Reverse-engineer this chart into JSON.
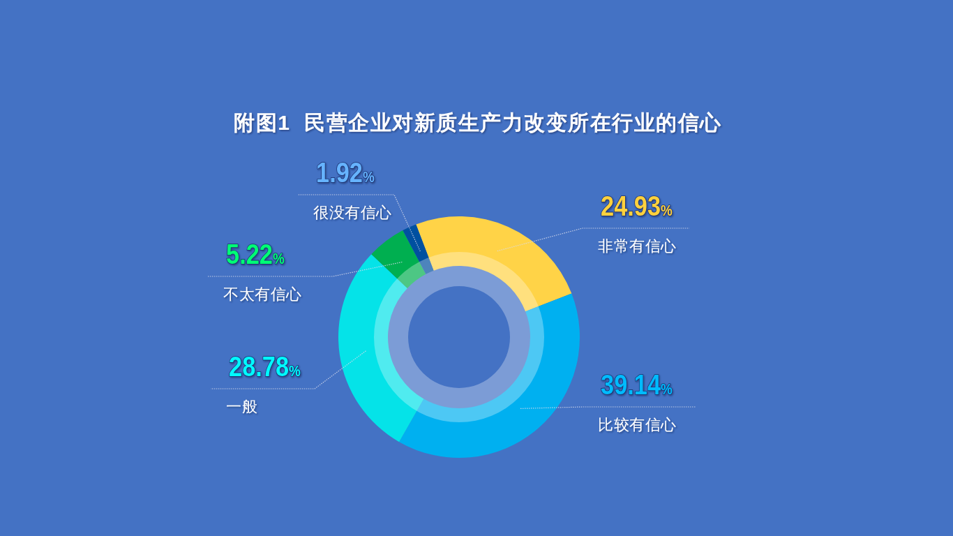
{
  "chart_data": {
    "type": "donut",
    "title": "附图1  民营企业对新质生产力改变所在行业的信心",
    "categories": [
      "非常有信心",
      "比较有信心",
      "一般",
      "不太有信心",
      "很没有信心"
    ],
    "values": [
      24.93,
      39.14,
      28.78,
      5.22,
      1.92
    ],
    "colors": [
      "#ffd347",
      "#00b0f0",
      "#05e3e8",
      "#00af50",
      "#0050a0"
    ],
    "value_labels": [
      "24.93%",
      "39.14%",
      "28.78%",
      "5.22%",
      "1.92%"
    ]
  }
}
